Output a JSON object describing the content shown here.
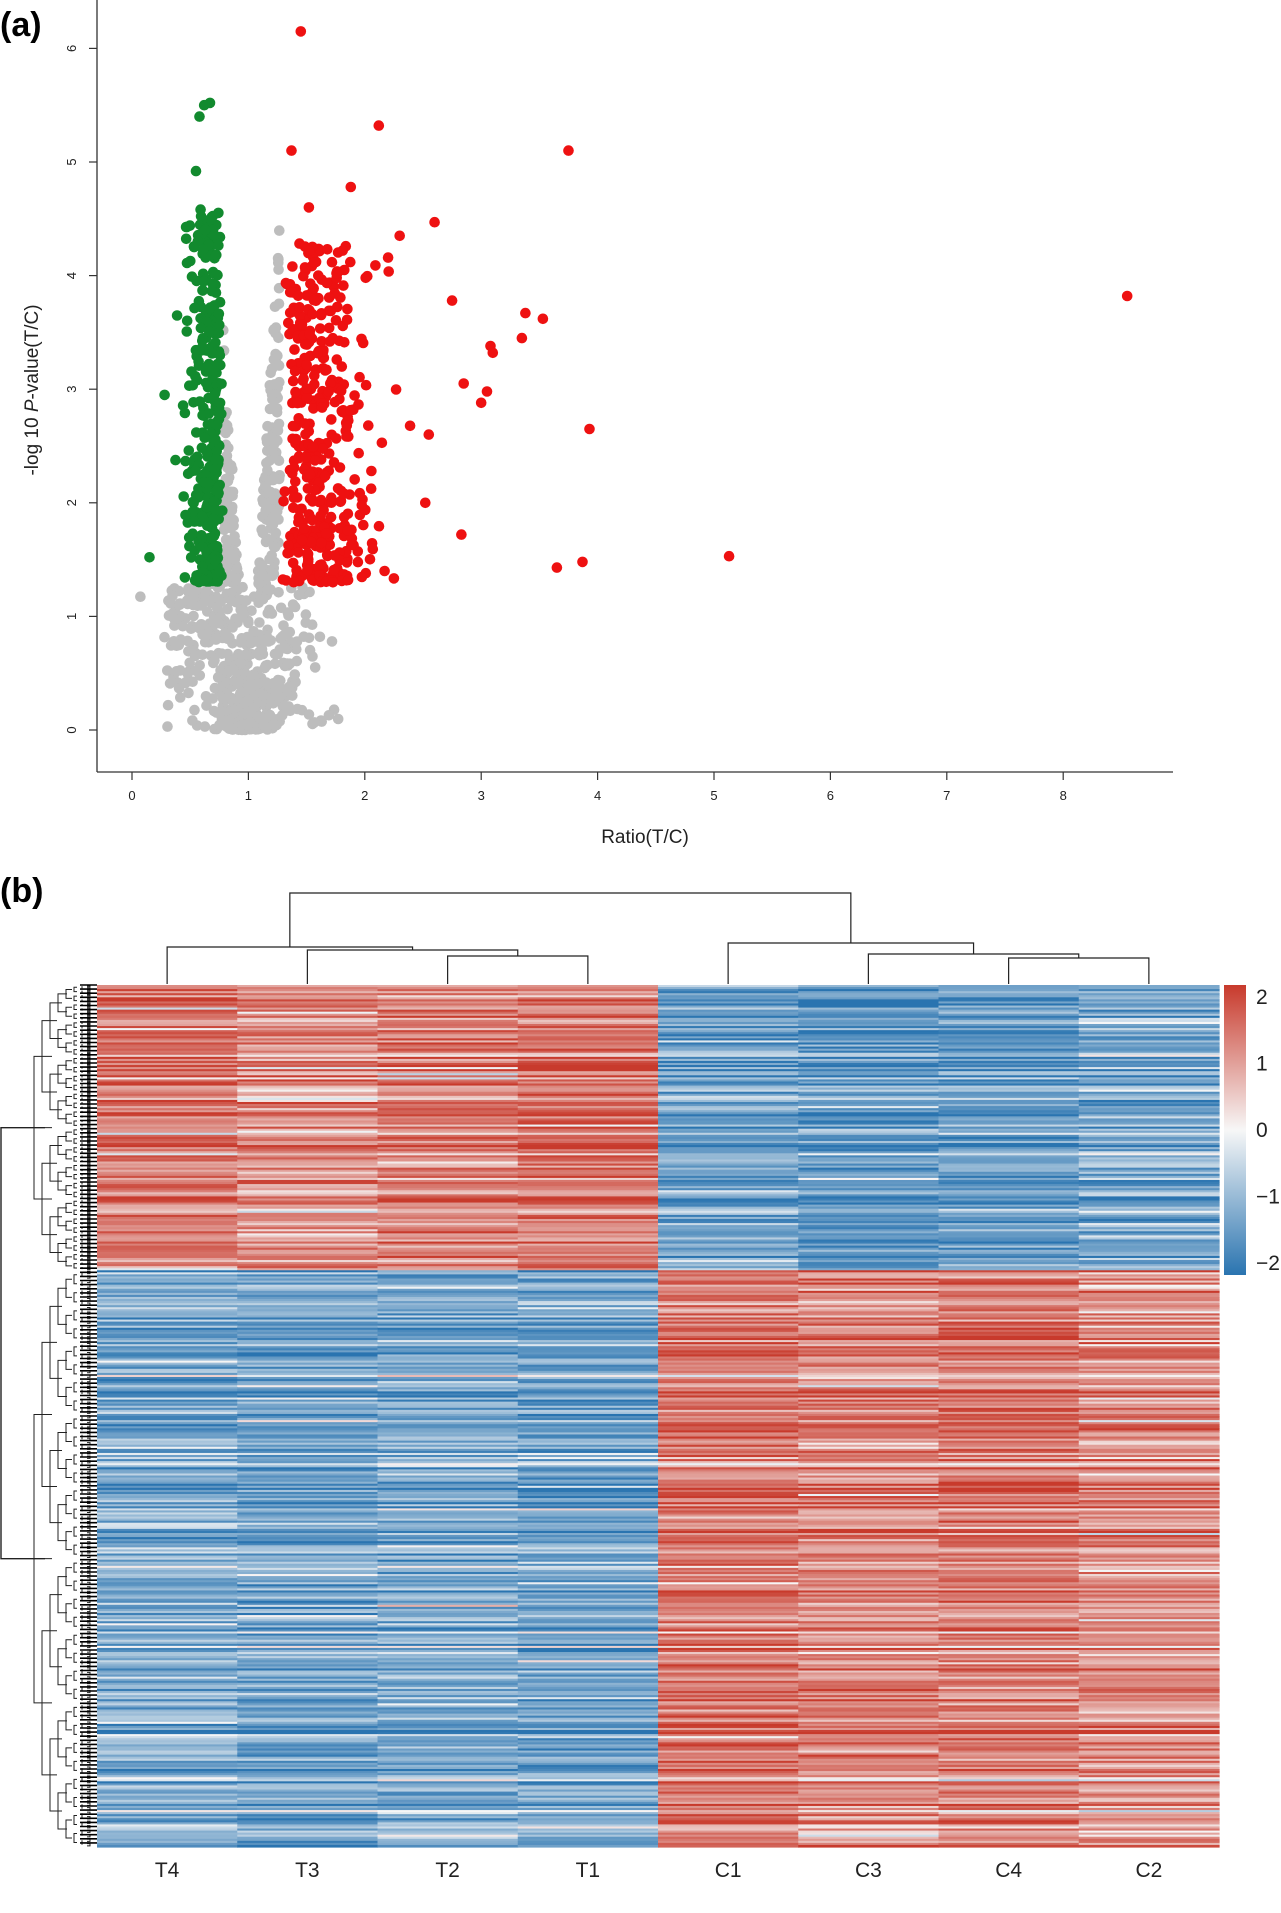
{
  "panels": {
    "a_label": "(a)",
    "b_label": "(b)"
  },
  "chart_data": [
    {
      "type": "scatter",
      "panel": "(a)",
      "xlabel": "Ratio(T/C)",
      "ylabel_prefix": "-log 10 ",
      "ylabel_italic": "P",
      "ylabel_suffix": "-value(T/C)",
      "xlim": [
        0,
        9
      ],
      "ylim": [
        0,
        6.3
      ],
      "xticks": [
        0,
        1,
        2,
        3,
        4,
        5,
        6,
        7,
        8
      ],
      "yticks": [
        0,
        1,
        2,
        3,
        4,
        5,
        6
      ],
      "grid": false,
      "colors": {
        "up": "#ee1111",
        "down": "#128a2e",
        "not_significant": "#bdbdbd"
      },
      "highlighted_points": [
        {
          "x": 1.45,
          "y": 6.15,
          "group": "up"
        },
        {
          "x": 2.12,
          "y": 5.32,
          "group": "up"
        },
        {
          "x": 3.75,
          "y": 5.1,
          "group": "up"
        },
        {
          "x": 8.55,
          "y": 3.82,
          "group": "up"
        },
        {
          "x": 3.93,
          "y": 2.65,
          "group": "up"
        },
        {
          "x": 3.38,
          "y": 3.67,
          "group": "up"
        },
        {
          "x": 3.53,
          "y": 3.62,
          "group": "up"
        },
        {
          "x": 3.35,
          "y": 3.45,
          "group": "up"
        },
        {
          "x": 3.08,
          "y": 3.38,
          "group": "up"
        },
        {
          "x": 3.1,
          "y": 3.32,
          "group": "up"
        },
        {
          "x": 3.05,
          "y": 2.98,
          "group": "up"
        },
        {
          "x": 3.0,
          "y": 2.88,
          "group": "up"
        },
        {
          "x": 2.6,
          "y": 4.47,
          "group": "up"
        },
        {
          "x": 2.3,
          "y": 4.35,
          "group": "up"
        },
        {
          "x": 2.75,
          "y": 3.78,
          "group": "up"
        },
        {
          "x": 2.55,
          "y": 2.6,
          "group": "up"
        },
        {
          "x": 2.85,
          "y": 3.05,
          "group": "up"
        },
        {
          "x": 2.52,
          "y": 2.0,
          "group": "up"
        },
        {
          "x": 2.83,
          "y": 1.72,
          "group": "up"
        },
        {
          "x": 5.13,
          "y": 1.53,
          "group": "up"
        },
        {
          "x": 3.87,
          "y": 1.48,
          "group": "up"
        },
        {
          "x": 3.65,
          "y": 1.43,
          "group": "up"
        },
        {
          "x": 2.17,
          "y": 1.4,
          "group": "up"
        },
        {
          "x": 1.52,
          "y": 4.6,
          "group": "up"
        },
        {
          "x": 1.37,
          "y": 5.1,
          "group": "up"
        },
        {
          "x": 1.88,
          "y": 4.78,
          "group": "up"
        },
        {
          "x": 0.62,
          "y": 5.5,
          "group": "down"
        },
        {
          "x": 0.67,
          "y": 5.52,
          "group": "down"
        },
        {
          "x": 0.58,
          "y": 5.4,
          "group": "down"
        },
        {
          "x": 0.55,
          "y": 4.92,
          "group": "down"
        },
        {
          "x": 0.15,
          "y": 1.52,
          "group": "down"
        },
        {
          "x": 0.28,
          "y": 2.95,
          "group": "down"
        }
      ],
      "bulk_clouds": [
        {
          "group": "up",
          "x_range": [
            1.27,
            2.3
          ],
          "y_range": [
            1.3,
            4.3
          ],
          "count": 380
        },
        {
          "group": "down",
          "x_range": [
            0.4,
            0.78
          ],
          "y_range": [
            1.3,
            4.6
          ],
          "count": 330
        },
        {
          "group": "not_significant",
          "x_range": [
            0.3,
            1.9
          ],
          "y_range": [
            0,
            4.7
          ],
          "count": 900
        }
      ]
    },
    {
      "type": "heatmap",
      "panel": "(b)",
      "columns": [
        "T4",
        "T3",
        "T2",
        "T1",
        "C1",
        "C3",
        "C4",
        "C2"
      ],
      "row_clusters": [
        {
          "fraction": 0.33,
          "pattern": [
            1.2,
            1.0,
            1.1,
            1.3,
            -1.2,
            -1.4,
            -1.3,
            -1.1
          ]
        },
        {
          "fraction": 0.67,
          "pattern": [
            -1.1,
            -1.2,
            -1.1,
            -1.2,
            1.3,
            1.1,
            1.2,
            1.0
          ]
        }
      ],
      "row_count": 420,
      "color_scale": {
        "min": -2,
        "max": 2,
        "low_color": "#2a74b0",
        "mid_color": "#f7f7f7",
        "high_color": "#c83a2c",
        "ticks": [
          "2",
          "1",
          "0",
          "−1",
          "−2"
        ]
      },
      "column_dendrogram": true,
      "row_dendrogram": true
    }
  ]
}
